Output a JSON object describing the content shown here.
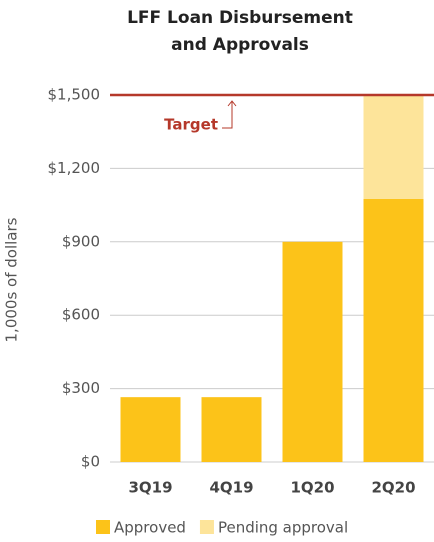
{
  "chart_data": {
    "type": "stacked_bar",
    "title": [
      "LFF Loan Disbursement",
      "and Approvals"
    ],
    "y_label": "1,000s of dollars",
    "categories": [
      "3Q19",
      "4Q19",
      "1Q20",
      "2Q20"
    ],
    "series": [
      {
        "name": "Approved",
        "color": "#fcc319",
        "values": [
          265,
          265,
          900,
          1075
        ]
      },
      {
        "name": "Pending approval",
        "color": "#fde49a",
        "values": [
          0,
          0,
          0,
          425
        ]
      }
    ],
    "ylim": [
      0,
      1500
    ],
    "yticks": [
      {
        "value": 0,
        "label": "$0"
      },
      {
        "value": 300,
        "label": "$300"
      },
      {
        "value": 600,
        "label": "$600"
      },
      {
        "value": 900,
        "label": "$900"
      },
      {
        "value": 1200,
        "label": "$1,200"
      },
      {
        "value": 1500,
        "label": "$1,500"
      }
    ],
    "grid": true,
    "target": {
      "label": "Target",
      "value": 1500,
      "color": "#b5382a"
    }
  }
}
